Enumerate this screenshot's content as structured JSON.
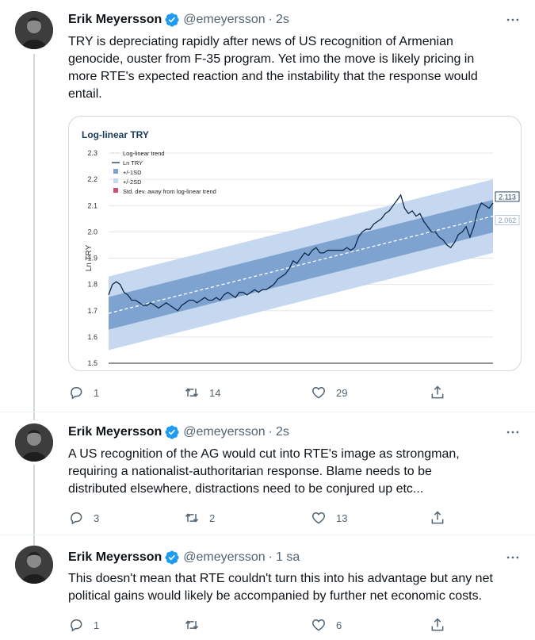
{
  "tweets": [
    {
      "author": "Erik Meyersson",
      "handle": "@emeyersson",
      "separator": "·",
      "time": "2s",
      "text_lines": [
        "TRY is depreciating rapidly after news of US recognition of Armenian",
        "genocide, ouster from F-35 program. Yet imo the move is likely pricing in",
        "more RTE's expected reaction and the instability that the response would",
        "entail."
      ],
      "replies": "1",
      "retweets": "14",
      "likes": "29"
    },
    {
      "author": "Erik Meyersson",
      "handle": "@emeyersson",
      "separator": "·",
      "time": "2s",
      "text_lines": [
        "A US recognition of the AG would cut into RTE's image as strongman,",
        "requiring a  nationalist-authoritarian response. Blame needs to be",
        "distributed elsewhere, distractions need to be conjured up etc..."
      ],
      "replies": "3",
      "retweets": "2",
      "likes": "13"
    },
    {
      "author": "Erik Meyersson",
      "handle": "@emeyersson",
      "separator": "·",
      "time": "1 sa",
      "text_lines": [
        "This doesn't mean that RTE couldn't turn this into his advantage but any net",
        "political gains would likely be accompanied by further net economic costs."
      ],
      "replies": "1",
      "retweets": "",
      "likes": "6"
    }
  ],
  "colors": {
    "text": "#0f1419",
    "muted": "#536471",
    "verified": "#1d9bf0",
    "band_1sd": "#7fa3d1",
    "band_2sd": "#c6d8ef",
    "series": "#0d2a4a"
  },
  "icons": [
    "reply-icon",
    "retweet-icon",
    "like-icon",
    "share-icon",
    "more-icon",
    "verified-badge-icon"
  ],
  "chart_data": {
    "type": "line",
    "title": "Log-linear TRY",
    "xlabel": "",
    "ylabel": "Ln TRY",
    "ylim": [
      1.5,
      2.3
    ],
    "yticks": [
      "1.5",
      "1.6",
      "1.7",
      "1.8",
      "1.9",
      "2.0",
      "2.1",
      "2.2",
      "2.3"
    ],
    "legend": [
      "Log-linear trend",
      "Ln TRY",
      "+/-1SD",
      "+/-2SD",
      "Std. dev. away from log-linear trend"
    ],
    "legend_position": "top-left",
    "x": [
      0,
      1,
      2,
      3,
      4,
      5,
      6,
      7,
      8,
      9,
      10,
      11,
      12,
      13,
      14,
      15,
      16,
      17,
      18,
      19,
      20,
      21,
      22,
      23,
      24,
      25,
      26,
      27,
      28,
      29,
      30,
      31,
      32,
      33,
      34,
      35,
      36,
      37,
      38,
      39,
      40,
      41,
      42,
      43,
      44,
      45,
      46,
      47,
      48,
      49,
      50,
      51,
      52,
      53,
      54,
      55,
      56,
      57,
      58,
      59,
      60,
      61,
      62,
      63,
      64,
      65,
      66,
      67,
      68,
      69,
      70,
      71,
      72,
      73,
      74,
      75,
      76,
      77,
      78,
      79,
      80,
      81,
      82,
      83,
      84,
      85,
      86,
      87,
      88,
      89,
      90,
      91,
      92,
      93,
      94,
      95,
      96,
      97,
      98,
      99,
      100
    ],
    "series": [
      {
        "name": "Ln TRY",
        "values": [
          1.76,
          1.8,
          1.81,
          1.8,
          1.77,
          1.76,
          1.74,
          1.74,
          1.73,
          1.72,
          1.72,
          1.73,
          1.72,
          1.71,
          1.72,
          1.73,
          1.72,
          1.71,
          1.7,
          1.72,
          1.73,
          1.74,
          1.74,
          1.73,
          1.74,
          1.75,
          1.74,
          1.74,
          1.75,
          1.74,
          1.76,
          1.77,
          1.76,
          1.75,
          1.77,
          1.77,
          1.76,
          1.77,
          1.78,
          1.77,
          1.78,
          1.78,
          1.79,
          1.8,
          1.82,
          1.83,
          1.84,
          1.86,
          1.89,
          1.88,
          1.9,
          1.92,
          1.91,
          1.93,
          1.94,
          1.92,
          1.92,
          1.93,
          1.93,
          1.93,
          1.93,
          1.93,
          1.94,
          1.93,
          1.94,
          1.98,
          2.0,
          2.01,
          2.01,
          2.03,
          2.04,
          2.05,
          2.07,
          2.08,
          2.1,
          2.12,
          2.14,
          2.09,
          2.07,
          2.08,
          2.06,
          2.07,
          2.04,
          2.02,
          2.0,
          2.0,
          1.98,
          1.97,
          1.95,
          1.94,
          1.96,
          1.99,
          2.0,
          2.02,
          1.98,
          2.02,
          2.08,
          2.11,
          2.1,
          2.09,
          2.11
        ]
      },
      {
        "name": "Log-linear trend",
        "values_start_end": [
          1.69,
          2.06
        ]
      }
    ],
    "bands": {
      "sd1": 0.062,
      "sd2": 0.14
    },
    "end_labels": [
      "2.113",
      "2.062"
    ]
  }
}
